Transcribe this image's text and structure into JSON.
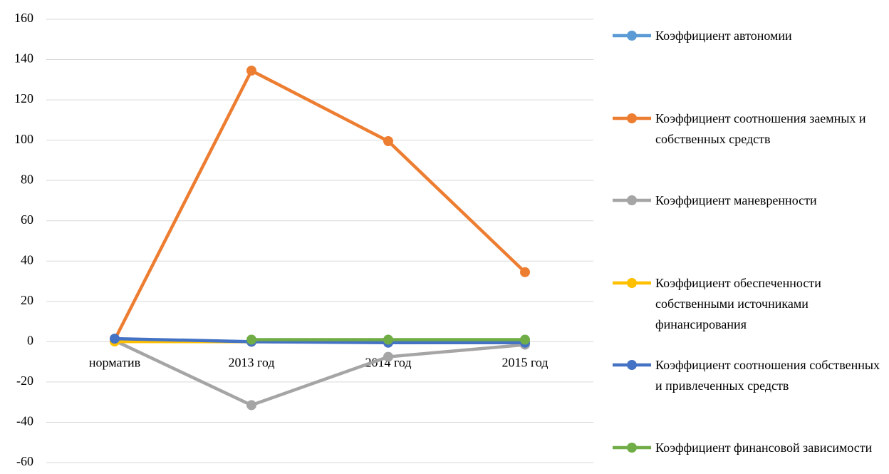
{
  "chart_data": {
    "type": "line",
    "categories": [
      "норматив",
      "2013 год",
      "2014 год",
      "2015 год"
    ],
    "series": [
      {
        "name": "Коэффициент автономии",
        "color": "#5b9bd5",
        "values": [
          0.5,
          0,
          0,
          0
        ]
      },
      {
        "name": "Коэффициент соотношения заемных и собственных средств",
        "color": "#ed7d31",
        "values": [
          1,
          134.5,
          99.5,
          34.5
        ]
      },
      {
        "name": "Коэффициент маневренности",
        "color": "#a5a5a5",
        "values": [
          0.5,
          -31.5,
          -7.5,
          -1.5
        ]
      },
      {
        "name": "Коэффициент обеспеченности собственными источниками финансирования",
        "color": "#ffc000",
        "values": [
          0.1,
          0,
          0,
          0
        ]
      },
      {
        "name": "Коэффициент соотношения собственных и привлеченных средств",
        "color": "#4472c4",
        "values": [
          1.5,
          0,
          -0.5,
          -0.5
        ]
      },
      {
        "name": "Коэффициент финансовой зависимости",
        "color": "#70ad47",
        "values": [
          null,
          1,
          1,
          1
        ]
      }
    ],
    "ylim": [
      -60,
      160
    ],
    "yticks": [
      -60,
      -40,
      -20,
      0,
      20,
      40,
      60,
      80,
      100,
      120,
      140,
      160
    ],
    "grid": true,
    "legend": "right"
  }
}
